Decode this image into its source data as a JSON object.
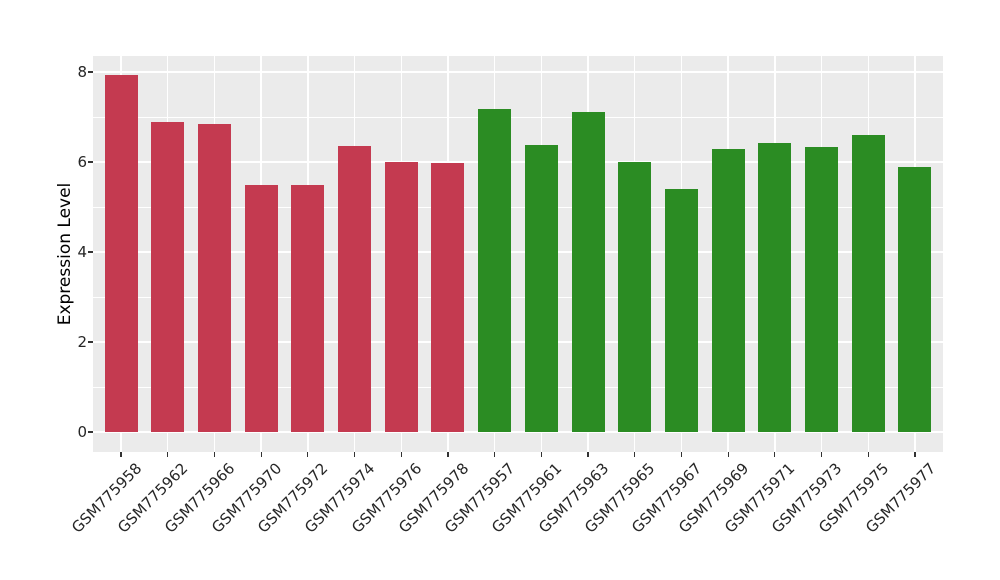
{
  "chart_data": {
    "type": "bar",
    "title": "",
    "xlabel": "",
    "ylabel": "Expression Level",
    "ylim": [
      -0.45,
      8.36
    ],
    "yticks": [
      0,
      2,
      4,
      6,
      8
    ],
    "ytick_labels": [
      "0",
      "2",
      "4",
      "6",
      "8"
    ],
    "yticks_minor": [
      1,
      3,
      5,
      7
    ],
    "legend_position": "none",
    "grid": "white major + minor horizontal lines, white vertical lines at category centers",
    "panel_bg": "#EBEBEB",
    "grid_color": "#FFFFFF",
    "group_colors": {
      "left_group_red": "#C43A50",
      "right_group_green": "#2B8C23"
    },
    "categories": [
      "GSM775958",
      "GSM775962",
      "GSM775966",
      "GSM775970",
      "GSM775972",
      "GSM775974",
      "GSM775976",
      "GSM775978",
      "GSM775957",
      "GSM775961",
      "GSM775963",
      "GSM775965",
      "GSM775967",
      "GSM775969",
      "GSM775971",
      "GSM775973",
      "GSM775975",
      "GSM775977"
    ],
    "series": [
      {
        "name": "Expression Level",
        "values": [
          7.93,
          6.88,
          6.84,
          5.5,
          5.5,
          6.35,
          6.0,
          5.97,
          7.17,
          6.37,
          7.11,
          6.01,
          5.4,
          6.28,
          6.42,
          6.34,
          6.61,
          5.89
        ]
      }
    ],
    "bars": [
      {
        "label": "GSM775958",
        "value": 7.93,
        "color": "#C43A50"
      },
      {
        "label": "GSM775962",
        "value": 6.88,
        "color": "#C43A50"
      },
      {
        "label": "GSM775966",
        "value": 6.84,
        "color": "#C43A50"
      },
      {
        "label": "GSM775970",
        "value": 5.5,
        "color": "#C43A50"
      },
      {
        "label": "GSM775972",
        "value": 5.5,
        "color": "#C43A50"
      },
      {
        "label": "GSM775974",
        "value": 6.35,
        "color": "#C43A50"
      },
      {
        "label": "GSM775976",
        "value": 6.0,
        "color": "#C43A50"
      },
      {
        "label": "GSM775978",
        "value": 5.97,
        "color": "#C43A50"
      },
      {
        "label": "GSM775957",
        "value": 7.17,
        "color": "#2B8C23"
      },
      {
        "label": "GSM775961",
        "value": 6.37,
        "color": "#2B8C23"
      },
      {
        "label": "GSM775963",
        "value": 7.11,
        "color": "#2B8C23"
      },
      {
        "label": "GSM775965",
        "value": 6.01,
        "color": "#2B8C23"
      },
      {
        "label": "GSM775967",
        "value": 5.4,
        "color": "#2B8C23"
      },
      {
        "label": "GSM775969",
        "value": 6.28,
        "color": "#2B8C23"
      },
      {
        "label": "GSM775971",
        "value": 6.42,
        "color": "#2B8C23"
      },
      {
        "label": "GSM775973",
        "value": 6.34,
        "color": "#2B8C23"
      },
      {
        "label": "GSM775975",
        "value": 6.61,
        "color": "#2B8C23"
      },
      {
        "label": "GSM775977",
        "value": 5.89,
        "color": "#2B8C23"
      }
    ]
  }
}
